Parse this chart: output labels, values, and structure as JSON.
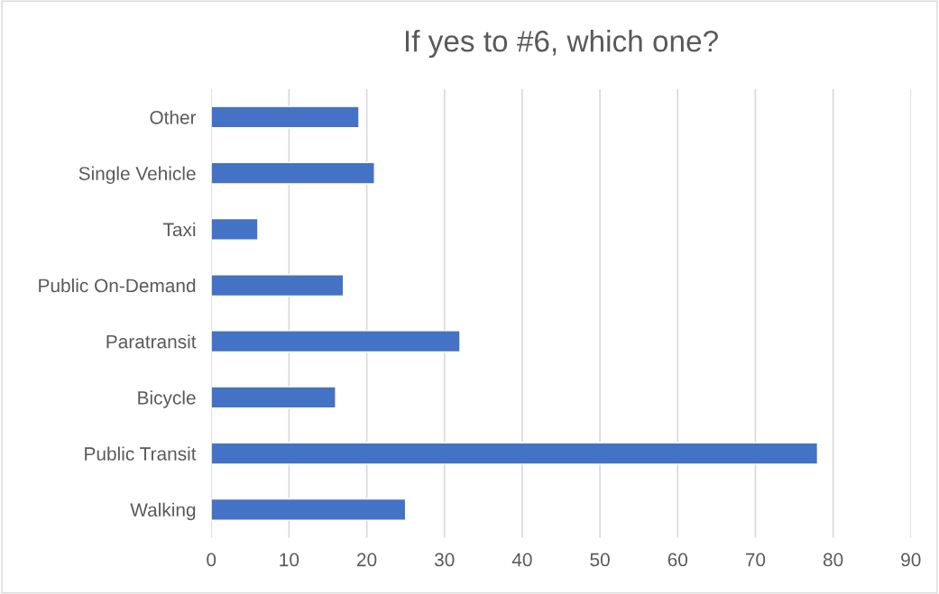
{
  "chart_data": {
    "type": "bar",
    "orientation": "horizontal",
    "title": "If yes to #6, which one?",
    "categories": [
      "Other",
      "Single Vehicle",
      "Taxi",
      "Public On-Demand",
      "Paratransit",
      "Bicycle",
      "Public Transit",
      "Walking"
    ],
    "values": [
      19,
      21,
      6,
      17,
      32,
      16,
      78,
      25
    ],
    "color": "#4472c4",
    "xlim": [
      0,
      90
    ],
    "xticks": [
      0,
      10,
      20,
      30,
      40,
      50,
      60,
      70,
      80,
      90
    ],
    "grid": "x",
    "legend": false
  }
}
